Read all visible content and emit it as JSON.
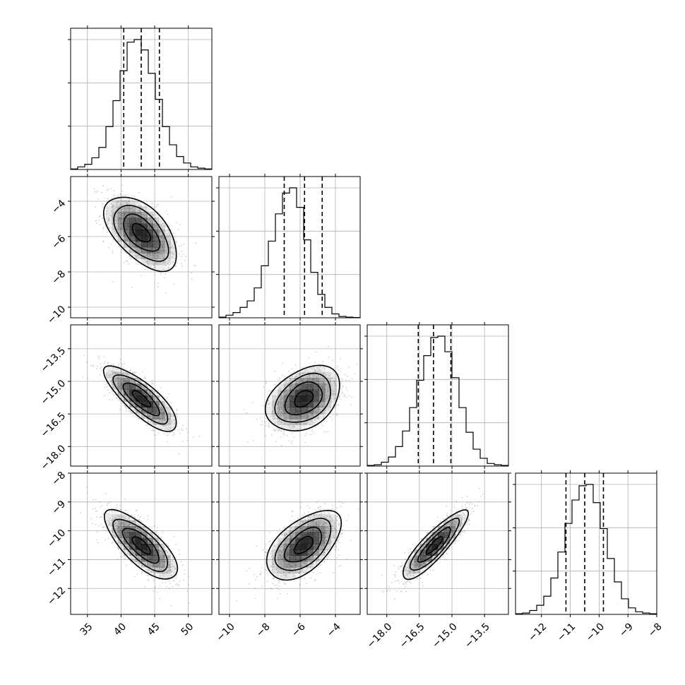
{
  "chart_data": {
    "type": "corner",
    "grid": true,
    "parameters": [
      {
        "range": [
          32.5,
          53.5
        ],
        "ticks": [
          35,
          40,
          45,
          50
        ],
        "tick_labels": [
          "35",
          "40",
          "45",
          "50"
        ],
        "mean": 43.0,
        "std": 2.7,
        "quantiles": [
          40.4,
          43.0,
          45.7
        ],
        "hist": [
          0.004,
          0.02,
          0.04,
          0.09,
          0.17,
          0.33,
          0.53,
          0.76,
          0.98,
          1.0,
          0.92,
          0.74,
          0.54,
          0.33,
          0.19,
          0.1,
          0.05,
          0.02,
          0.01,
          0.004
        ]
      },
      {
        "range": [
          -10.6,
          -2.6
        ],
        "ticks": [
          -10,
          -8,
          -6,
          -4
        ],
        "tick_labels": [
          "−10",
          "−8",
          "−6",
          "−4"
        ],
        "mean": -5.8,
        "std": 1.05,
        "quantiles": [
          -6.9,
          -5.75,
          -4.75
        ],
        "hist": [
          0.005,
          0.02,
          0.04,
          0.08,
          0.13,
          0.23,
          0.4,
          0.59,
          0.8,
          0.96,
          1.0,
          0.85,
          0.6,
          0.35,
          0.18,
          0.08,
          0.03,
          0.01,
          0.005,
          0.002
        ]
      },
      {
        "range": [
          -18.9,
          -12.4
        ],
        "ticks": [
          -18.0,
          -16.5,
          -15.0,
          -13.5
        ],
        "tick_labels": [
          "−18.0",
          "−16.5",
          "−15.0",
          "−13.5"
        ],
        "mean": -15.8,
        "std": 0.75,
        "quantiles": [
          -16.55,
          -15.85,
          -15.05
        ],
        "hist": [
          0.005,
          0.01,
          0.03,
          0.07,
          0.15,
          0.27,
          0.45,
          0.66,
          0.85,
          0.99,
          1.0,
          0.88,
          0.68,
          0.45,
          0.26,
          0.13,
          0.06,
          0.02,
          0.01,
          0.005
        ]
      },
      {
        "range": [
          -12.9,
          -8.0
        ],
        "ticks": [
          -12,
          -11,
          -10,
          -9,
          -8
        ],
        "tick_labels": [
          "−12",
          "−11",
          "−10",
          "−9",
          "−8"
        ],
        "mean": -10.5,
        "std": 0.6,
        "quantiles": [
          -11.15,
          -10.5,
          -9.85
        ],
        "hist": [
          0.005,
          0.01,
          0.03,
          0.07,
          0.14,
          0.28,
          0.48,
          0.7,
          0.88,
          0.99,
          1.0,
          0.86,
          0.66,
          0.43,
          0.25,
          0.12,
          0.05,
          0.02,
          0.01,
          0.005
        ]
      }
    ],
    "correlations": [
      [
        1.0,
        -0.55,
        -0.8,
        -0.75
      ],
      [
        -0.55,
        1.0,
        0.35,
        0.55
      ],
      [
        -0.8,
        0.35,
        1.0,
        0.87
      ],
      [
        -0.75,
        0.55,
        0.87,
        1.0
      ]
    ],
    "contour_levels_sigma": [
      0.5,
      1.0,
      1.5,
      2.0
    ]
  }
}
